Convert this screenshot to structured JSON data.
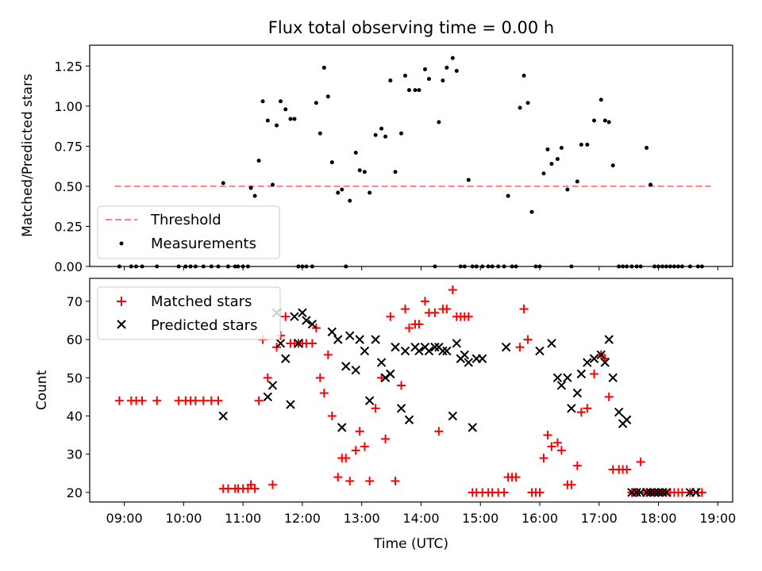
{
  "chart_data": [
    {
      "type": "scatter",
      "title": "Flux total observing time = 0.00 h",
      "xlabel": "",
      "ylabel": "Matched/Predicted stars",
      "ylim": [
        0,
        1.38
      ],
      "yticks": [
        "0.00",
        "0.25",
        "0.50",
        "0.75",
        "1.00",
        "1.25"
      ],
      "legend_position": "lower-left",
      "threshold": {
        "name": "Threshold",
        "value": 0.5,
        "x_range": [
          "09:00",
          "18:45"
        ],
        "color": "#ff7f7f"
      },
      "series": [
        {
          "name": "Measurements",
          "color": "#000000",
          "x": [
            "08:55",
            "09:07",
            "09:12",
            "09:18",
            "09:33",
            "09:55",
            "10:02",
            "10:07",
            "10:12",
            "10:20",
            "10:28",
            "10:35",
            "10:40",
            "10:45",
            "10:52",
            "10:55",
            "11:00",
            "11:05",
            "11:08",
            "11:12",
            "11:16",
            "11:20",
            "11:25",
            "11:30",
            "11:34",
            "11:38",
            "11:43",
            "11:48",
            "11:52",
            "11:56",
            "12:00",
            "12:04",
            "12:10",
            "12:14",
            "12:18",
            "12:22",
            "12:26",
            "12:30",
            "12:36",
            "12:40",
            "12:44",
            "12:48",
            "12:54",
            "12:58",
            "13:03",
            "13:08",
            "13:14",
            "13:20",
            "13:24",
            "13:29",
            "13:34",
            "13:40",
            "13:44",
            "13:48",
            "13:54",
            "13:58",
            "14:04",
            "14:08",
            "14:14",
            "14:18",
            "14:22",
            "14:26",
            "14:32",
            "14:36",
            "14:40",
            "14:44",
            "14:48",
            "14:52",
            "14:56",
            "15:02",
            "15:08",
            "15:12",
            "15:18",
            "15:24",
            "15:28",
            "15:32",
            "15:36",
            "15:40",
            "15:44",
            "15:48",
            "15:52",
            "15:56",
            "16:00",
            "16:04",
            "16:08",
            "16:12",
            "16:18",
            "16:22",
            "16:28",
            "16:32",
            "16:38",
            "16:42",
            "16:48",
            "16:55",
            "17:02",
            "17:06",
            "17:10",
            "17:14",
            "17:20",
            "17:24",
            "17:28",
            "17:33",
            "17:38",
            "17:42",
            "17:48",
            "17:52",
            "17:56",
            "18:00",
            "18:04",
            "18:08",
            "18:12",
            "18:16",
            "18:20",
            "18:24",
            "18:32",
            "18:40",
            "18:44"
          ],
          "y": [
            0,
            0,
            0,
            0,
            0,
            0,
            0,
            0,
            0,
            0,
            0,
            0,
            0.52,
            0,
            0,
            0,
            0,
            0,
            0.49,
            0.44,
            0.66,
            1.03,
            0.91,
            0.51,
            0.88,
            1.03,
            0.98,
            0.92,
            0.92,
            0,
            0,
            0,
            0,
            1.02,
            0.83,
            1.24,
            1.06,
            0.65,
            0.46,
            0.48,
            0,
            0.41,
            0.71,
            0.6,
            0.59,
            0.46,
            0.82,
            0.86,
            0.81,
            1.16,
            0.59,
            0.83,
            1.19,
            1.1,
            1.1,
            1.1,
            1.23,
            1.17,
            0,
            0.9,
            1.16,
            1.24,
            1.3,
            1.22,
            0,
            0,
            0.54,
            0,
            0,
            0,
            0,
            0,
            0,
            0,
            0.44,
            0,
            0,
            0.99,
            1.19,
            1.02,
            0.34,
            0,
            0,
            0.58,
            0.73,
            0.64,
            0.67,
            0.74,
            0.48,
            0,
            0.53,
            0.76,
            0.76,
            0.91,
            1.04,
            0.91,
            0.9,
            0.63,
            0,
            0,
            0,
            0,
            0,
            0,
            0.74,
            0.51,
            0,
            0,
            0,
            0,
            0,
            0,
            0,
            0,
            0,
            0,
            0
          ]
        }
      ]
    },
    {
      "type": "scatter",
      "title": "",
      "xlabel": "Time (UTC)",
      "ylabel": "Count",
      "ylim": [
        17.5,
        76
      ],
      "yticks": [
        "20",
        "30",
        "40",
        "50",
        "60",
        "70"
      ],
      "xticks": [
        "09:00",
        "10:00",
        "11:00",
        "12:00",
        "13:00",
        "14:00",
        "15:00",
        "16:00",
        "17:00",
        "18:00",
        "19:00"
      ],
      "legend_position": "upper-left",
      "series": [
        {
          "name": "Matched stars",
          "color": "#ff0000",
          "marker": "plus",
          "x": [
            "08:55",
            "09:07",
            "09:12",
            "09:18",
            "09:33",
            "09:55",
            "10:02",
            "10:07",
            "10:12",
            "10:20",
            "10:28",
            "10:35",
            "10:40",
            "10:45",
            "10:52",
            "10:55",
            "11:00",
            "11:05",
            "11:08",
            "11:12",
            "11:16",
            "11:20",
            "11:25",
            "11:30",
            "11:34",
            "11:38",
            "11:43",
            "11:48",
            "11:52",
            "11:56",
            "12:00",
            "12:04",
            "12:10",
            "12:14",
            "12:18",
            "12:22",
            "12:26",
            "12:30",
            "12:36",
            "12:40",
            "12:44",
            "12:48",
            "12:54",
            "12:58",
            "13:03",
            "13:08",
            "13:14",
            "13:20",
            "13:24",
            "13:29",
            "13:34",
            "13:40",
            "13:44",
            "13:48",
            "13:54",
            "13:58",
            "14:04",
            "14:08",
            "14:14",
            "14:18",
            "14:22",
            "14:26",
            "14:32",
            "14:36",
            "14:40",
            "14:44",
            "14:48",
            "14:52",
            "14:56",
            "15:02",
            "15:08",
            "15:12",
            "15:18",
            "15:24",
            "15:28",
            "15:32",
            "15:36",
            "15:40",
            "15:44",
            "15:48",
            "15:52",
            "15:56",
            "16:00",
            "16:04",
            "16:08",
            "16:12",
            "16:18",
            "16:22",
            "16:28",
            "16:32",
            "16:38",
            "16:42",
            "16:48",
            "16:55",
            "17:02",
            "17:06",
            "17:10",
            "17:14",
            "17:20",
            "17:24",
            "17:28",
            "17:33",
            "17:38",
            "17:42",
            "17:48",
            "17:52",
            "17:56",
            "18:00",
            "18:04",
            "18:08",
            "18:12",
            "18:16",
            "18:20",
            "18:24",
            "18:32",
            "18:40",
            "18:44"
          ],
          "y": [
            44,
            44,
            44,
            44,
            44,
            44,
            44,
            44,
            44,
            44,
            44,
            44,
            21,
            21,
            21,
            21,
            21,
            21,
            22,
            21,
            44,
            60,
            50,
            22,
            58,
            61,
            66,
            59,
            59,
            59,
            59,
            59,
            59,
            63,
            50,
            46,
            56,
            40,
            24,
            29,
            29,
            23,
            31,
            36,
            32,
            23,
            42,
            50,
            34,
            66,
            23,
            48,
            68,
            63,
            64,
            64,
            70,
            67,
            67,
            36,
            68,
            68,
            73,
            66,
            66,
            66,
            66,
            20,
            20,
            20,
            20,
            20,
            20,
            20,
            24,
            24,
            24,
            58,
            68,
            60,
            20,
            20,
            20,
            29,
            35,
            32,
            33,
            31,
            22,
            22,
            27,
            41,
            42,
            51,
            56,
            55,
            45,
            26,
            26,
            26,
            26,
            20,
            20,
            28,
            20,
            20,
            20,
            20,
            20,
            20,
            20,
            20,
            20,
            20,
            20,
            20,
            20
          ]
        },
        {
          "name": "Predicted stars",
          "color": "#000000",
          "marker": "cross",
          "x": [
            "10:40",
            "11:25",
            "11:30",
            "11:34",
            "11:38",
            "11:43",
            "11:48",
            "11:52",
            "11:56",
            "12:00",
            "12:04",
            "12:10",
            "12:30",
            "12:36",
            "12:40",
            "12:44",
            "12:48",
            "12:54",
            "12:58",
            "13:03",
            "13:08",
            "13:14",
            "13:20",
            "13:24",
            "13:29",
            "13:34",
            "13:40",
            "13:44",
            "13:48",
            "13:54",
            "13:58",
            "14:04",
            "14:08",
            "14:14",
            "14:18",
            "14:22",
            "14:26",
            "14:32",
            "14:36",
            "14:40",
            "14:44",
            "14:48",
            "14:52",
            "14:56",
            "15:02",
            "15:26",
            "16:00",
            "16:12",
            "16:18",
            "16:22",
            "16:28",
            "16:32",
            "16:38",
            "16:42",
            "16:48",
            "16:55",
            "17:02",
            "17:06",
            "17:10",
            "17:14",
            "17:20",
            "17:24",
            "17:28",
            "17:33",
            "17:38",
            "17:42",
            "17:48",
            "17:52",
            "17:56",
            "18:00",
            "18:04",
            "18:08",
            "18:32",
            "18:38"
          ],
          "y": [
            40,
            45,
            48,
            67,
            59,
            55,
            43,
            66,
            59,
            67,
            65,
            64,
            62,
            60,
            37,
            53,
            61,
            52,
            60,
            57,
            44,
            60,
            54,
            50,
            51,
            58,
            42,
            57,
            39,
            58,
            57,
            58,
            57,
            58,
            58,
            57,
            57,
            40,
            59,
            55,
            56,
            54,
            37,
            55,
            55,
            58,
            57,
            59,
            50,
            48,
            50,
            42,
            46,
            51,
            54,
            55,
            56,
            54,
            60,
            50,
            41,
            38,
            39,
            20,
            20,
            20,
            20,
            20,
            20,
            20,
            20,
            20,
            20,
            20
          ]
        }
      ]
    }
  ]
}
